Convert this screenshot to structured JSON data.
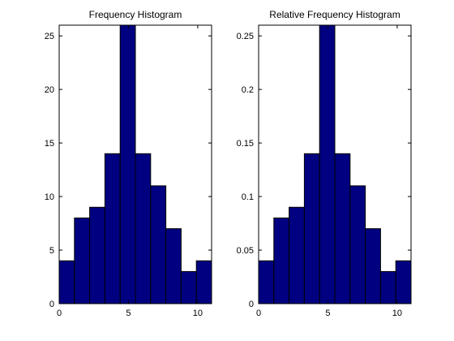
{
  "chart_data": [
    {
      "type": "bar",
      "title": "Frequency Histogram",
      "xlabel": "",
      "ylabel": "",
      "bin_edges": [
        0,
        1.1,
        2.2,
        3.3,
        4.4,
        5.5,
        6.6,
        7.7,
        8.8,
        9.9,
        11
      ],
      "values": [
        4,
        8,
        9,
        14,
        26,
        14,
        11,
        7,
        3,
        4
      ],
      "xlim": [
        0,
        11
      ],
      "ylim": [
        0,
        26
      ],
      "xticks": [
        "0",
        "5",
        "10"
      ],
      "yticks": [
        "0",
        "5",
        "10",
        "15",
        "20",
        "25"
      ],
      "xtick_values": [
        0,
        5,
        10
      ],
      "ytick_values": [
        0,
        5,
        10,
        15,
        20,
        25
      ],
      "bar_color": "#000080",
      "grid": false
    },
    {
      "type": "bar",
      "title": "Relative Frequency Histogram",
      "xlabel": "",
      "ylabel": "",
      "bin_edges": [
        0,
        1.1,
        2.2,
        3.3,
        4.4,
        5.5,
        6.6,
        7.7,
        8.8,
        9.9,
        11
      ],
      "values": [
        0.04,
        0.08,
        0.09,
        0.14,
        0.26,
        0.14,
        0.11,
        0.07,
        0.03,
        0.04
      ],
      "xlim": [
        0,
        11
      ],
      "ylim": [
        0,
        0.26
      ],
      "xticks": [
        "0",
        "5",
        "10"
      ],
      "yticks": [
        "0",
        "0.05",
        "0.1",
        "0.15",
        "0.2",
        "0.25"
      ],
      "xtick_values": [
        0,
        5,
        10
      ],
      "ytick_values": [
        0,
        0.05,
        0.1,
        0.15,
        0.2,
        0.25
      ],
      "bar_color": "#000080",
      "grid": false
    }
  ]
}
